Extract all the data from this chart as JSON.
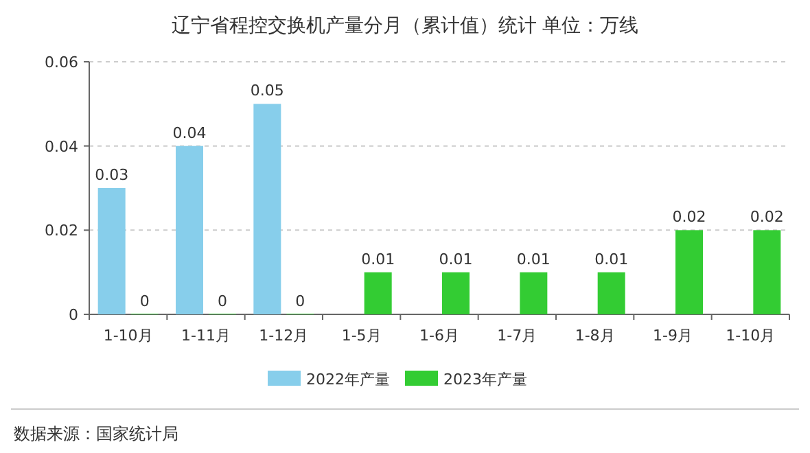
{
  "chart_data": {
    "type": "bar",
    "title": "辽宁省程控交换机产量分月（累计值）统计  单位：万线",
    "categories": [
      "1-10月",
      "1-11月",
      "1-12月",
      "1-5月",
      "1-6月",
      "1-7月",
      "1-8月",
      "1-9月",
      "1-10月"
    ],
    "series": [
      {
        "name": "2022年产量",
        "color": "#87ceeb",
        "values": [
          0.03,
          0.04,
          0.05,
          null,
          null,
          null,
          null,
          null,
          null
        ]
      },
      {
        "name": "2023年产量",
        "color": "#33cc33",
        "values": [
          0,
          0,
          0,
          0.01,
          0.01,
          0.01,
          0.01,
          0.02,
          0.02
        ]
      }
    ],
    "ylim": [
      0,
      0.06
    ],
    "yticks": [
      0,
      0.02,
      0.04,
      0.06
    ],
    "grid": "y",
    "legend": "bottom",
    "data_labels": true,
    "annotations": [
      "数据来源：国家统计局"
    ]
  }
}
